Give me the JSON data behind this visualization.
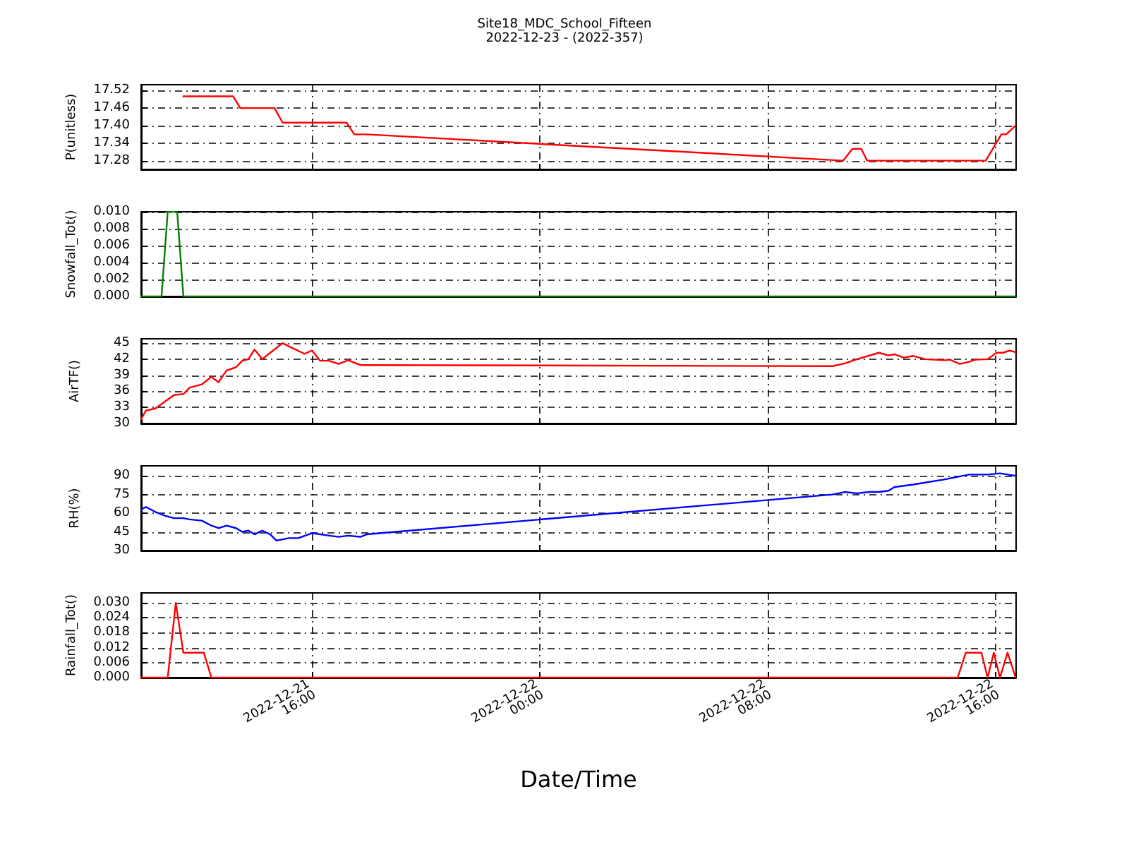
{
  "chart_data": [
    {
      "type": "line",
      "title": "Site18_MDC_School_Fifteen",
      "subtitle": "2022-12-23 - (2022-357)",
      "ylabel": "P(unitless)",
      "xlim": [
        "2022-12-21T10:00",
        "2022-12-22T16:43"
      ],
      "xticks": [
        {
          "value": "2022-12-21T16:00",
          "label": null
        },
        {
          "value": "2022-12-22T00:00",
          "label": null
        },
        {
          "value": "2022-12-22T08:00",
          "label": null
        },
        {
          "value": "2022-12-22T16:00",
          "label": null
        }
      ],
      "ylim": [
        17.25,
        17.54
      ],
      "yticks": [
        {
          "value": 17.28,
          "label": "17.28"
        },
        {
          "value": 17.34,
          "label": "17.34"
        },
        {
          "value": 17.4,
          "label": "17.40"
        },
        {
          "value": 17.46,
          "label": "17.46"
        },
        {
          "value": 17.52,
          "label": "17.52"
        }
      ],
      "grid": true,
      "tick_labels": "y",
      "marker": "none",
      "line_style": "solid",
      "series": [
        {
          "color": "#ff0000",
          "x": [
            "2022-12-21T11:29",
            "2022-12-21T13:14",
            "2022-12-21T13:29",
            "2022-12-21T14:41",
            "2022-12-21T14:58",
            "2022-12-21T17:13",
            "2022-12-21T17:29",
            "2022-12-21T17:55",
            "2022-12-22T10:39",
            "2022-12-22T10:58",
            "2022-12-22T11:17",
            "2022-12-22T11:29",
            "2022-12-22T15:39",
            "2022-12-22T16:12",
            "2022-12-22T16:22",
            "2022-12-22T16:42"
          ],
          "values": [
            17.5,
            17.5,
            17.46,
            17.46,
            17.41,
            17.41,
            17.37,
            17.37,
            17.28,
            17.32,
            17.32,
            17.28,
            17.28,
            17.37,
            17.37,
            17.4
          ]
        }
      ]
    },
    {
      "type": "line",
      "ylabel": "Snowfall_Tot()",
      "xlim": [
        "2022-12-21T10:00",
        "2022-12-22T16:43"
      ],
      "xticks": [
        {
          "value": "2022-12-21T16:00",
          "label": null
        },
        {
          "value": "2022-12-22T00:00",
          "label": null
        },
        {
          "value": "2022-12-22T08:00",
          "label": null
        },
        {
          "value": "2022-12-22T16:00",
          "label": null
        }
      ],
      "ylim": [
        0,
        0.01
      ],
      "yticks": [
        {
          "value": 0,
          "label": "0.000"
        },
        {
          "value": 0.002,
          "label": "0.002"
        },
        {
          "value": 0.004,
          "label": "0.004"
        },
        {
          "value": 0.006,
          "label": "0.006"
        },
        {
          "value": 0.008,
          "label": "0.008"
        },
        {
          "value": 0.01,
          "label": "0.010"
        }
      ],
      "grid": true,
      "tick_labels": "y",
      "marker": "none",
      "line_style": "solid",
      "series": [
        {
          "color": "#008000",
          "x": [
            "2022-12-21T10:00",
            "2022-12-21T10:43",
            "2022-12-21T10:56",
            "2022-12-21T11:16",
            "2022-12-21T11:29",
            "2022-12-22T16:42"
          ],
          "values": [
            0,
            0,
            0.01,
            0.01,
            0,
            0
          ]
        }
      ]
    },
    {
      "type": "line",
      "ylabel": "AirTF()",
      "xlim": [
        "2022-12-21T10:00",
        "2022-12-22T16:43"
      ],
      "xticks": [
        {
          "value": "2022-12-21T16:00",
          "label": null
        },
        {
          "value": "2022-12-22T00:00",
          "label": null
        },
        {
          "value": "2022-12-22T08:00",
          "label": null
        },
        {
          "value": "2022-12-22T16:00",
          "label": null
        }
      ],
      "ylim": [
        30,
        45.8
      ],
      "yticks": [
        30,
        33,
        36,
        39,
        42,
        45
      ],
      "grid": true,
      "tick_labels": "y",
      "marker": "none",
      "line_style": "solid",
      "series": [
        {
          "color": "#ff0000",
          "x": [
            "2022-12-21T10:00",
            "2022-12-21T10:10",
            "2022-12-21T10:30",
            "2022-12-21T11:09",
            "2022-12-21T11:29",
            "2022-12-21T11:42",
            "2022-12-21T12:08",
            "2022-12-21T12:28",
            "2022-12-21T12:43",
            "2022-12-21T13:00",
            "2022-12-21T13:20",
            "2022-12-21T13:33",
            "2022-12-21T13:46",
            "2022-12-21T13:59",
            "2022-12-21T14:15",
            "2022-12-21T14:32",
            "2022-12-21T14:58",
            "2022-12-21T15:11",
            "2022-12-21T15:44",
            "2022-12-21T16:00",
            "2022-12-21T16:17",
            "2022-12-21T16:36",
            "2022-12-21T16:56",
            "2022-12-21T17:16",
            "2022-12-21T17:42",
            "2022-12-21T17:55",
            "2022-12-22T10:16",
            "2022-12-22T10:42",
            "2022-12-22T11:08",
            "2022-12-22T11:54",
            "2022-12-22T12:14",
            "2022-12-22T12:27",
            "2022-12-22T12:46",
            "2022-12-22T13:06",
            "2022-12-22T13:32",
            "2022-12-22T14:11",
            "2022-12-22T14:24",
            "2022-12-22T14:44",
            "2022-12-22T15:04",
            "2022-12-22T15:17",
            "2022-12-22T15:43",
            "2022-12-22T16:02",
            "2022-12-22T16:16",
            "2022-12-22T16:29",
            "2022-12-22T16:42"
          ],
          "values": [
            30.8,
            32.4,
            32.8,
            35.3,
            35.5,
            36.7,
            37.3,
            38.7,
            37.7,
            39.9,
            40.5,
            41.7,
            42.0,
            43.8,
            42.0,
            43.2,
            45.0,
            44.4,
            43.0,
            43.6,
            41.7,
            41.7,
            41.1,
            41.8,
            40.9,
            40.9,
            40.7,
            41.2,
            42.0,
            43.2,
            42.7,
            42.9,
            42.3,
            42.6,
            42.0,
            41.8,
            41.9,
            41.1,
            41.5,
            41.9,
            42.0,
            43.2,
            43.2,
            43.6,
            43.3
          ]
        }
      ]
    },
    {
      "type": "line",
      "ylabel": "RH(%)",
      "xlim": [
        "2022-12-21T10:00",
        "2022-12-22T16:43"
      ],
      "xticks": [
        {
          "value": "2022-12-21T16:00",
          "label": null
        },
        {
          "value": "2022-12-22T00:00",
          "label": null
        },
        {
          "value": "2022-12-22T08:00",
          "label": null
        },
        {
          "value": "2022-12-22T16:00",
          "label": null
        }
      ],
      "ylim": [
        30,
        98
      ],
      "yticks": [
        30,
        45,
        60,
        75,
        90
      ],
      "grid": true,
      "tick_labels": "y",
      "marker": "none",
      "line_style": "solid",
      "series": [
        {
          "color": "#0000ff",
          "x": [
            "2022-12-21T10:00",
            "2022-12-21T10:10",
            "2022-12-21T10:30",
            "2022-12-21T10:50",
            "2022-12-21T11:09",
            "2022-12-21T11:29",
            "2022-12-21T11:42",
            "2022-12-21T12:08",
            "2022-12-21T12:28",
            "2022-12-21T12:43",
            "2022-12-21T13:00",
            "2022-12-21T13:20",
            "2022-12-21T13:33",
            "2022-12-21T13:46",
            "2022-12-21T13:59",
            "2022-12-21T14:15",
            "2022-12-21T14:32",
            "2022-12-21T14:45",
            "2022-12-21T15:11",
            "2022-12-21T15:31",
            "2022-12-21T16:00",
            "2022-12-21T16:36",
            "2022-12-21T16:56",
            "2022-12-21T17:16",
            "2022-12-21T17:42",
            "2022-12-21T17:55",
            "2022-12-22T10:16",
            "2022-12-22T10:42",
            "2022-12-22T11:08",
            "2022-12-22T11:34",
            "2022-12-22T11:54",
            "2022-12-22T12:14",
            "2022-12-22T12:27",
            "2022-12-22T13:06",
            "2022-12-22T14:11",
            "2022-12-22T15:04",
            "2022-12-22T15:43",
            "2022-12-22T16:09",
            "2022-12-22T16:42"
          ],
          "values": [
            63,
            65,
            61,
            58,
            56,
            56,
            55,
            54,
            50,
            48,
            50,
            48,
            45,
            46,
            43,
            46,
            43,
            38,
            40,
            40,
            44,
            42,
            41,
            42,
            41,
            43,
            75,
            77,
            76,
            77,
            77,
            78,
            81,
            83,
            87,
            91,
            91,
            92,
            90
          ]
        }
      ]
    },
    {
      "type": "line",
      "xlabel": "Date/Time",
      "ylabel": "Rainfall_Tot()",
      "xlim": [
        "2022-12-21T10:00",
        "2022-12-22T16:43"
      ],
      "xticks": [
        {
          "value": "2022-12-21T16:00",
          "label": "2022-12-21\n16:00"
        },
        {
          "value": "2022-12-22T00:00",
          "label": "2022-12-22\n00:00"
        },
        {
          "value": "2022-12-22T08:00",
          "label": "2022-12-22\n08:00"
        },
        {
          "value": "2022-12-22T16:00",
          "label": "2022-12-22\n16:00"
        }
      ],
      "ylim": [
        0,
        0.034
      ],
      "yticks": [
        {
          "value": 0,
          "label": "0.000"
        },
        {
          "value": 0.006,
          "label": "0.006"
        },
        {
          "value": 0.012,
          "label": "0.012"
        },
        {
          "value": 0.018,
          "label": "0.018"
        },
        {
          "value": 0.024,
          "label": "0.024"
        },
        {
          "value": 0.03,
          "label": "0.030"
        }
      ],
      "grid": true,
      "marker": "none",
      "line_style": "solid",
      "series": [
        {
          "color": "#ff0000",
          "x": [
            "2022-12-21T10:00",
            "2022-12-21T10:56",
            "2022-12-21T11:13",
            "2022-12-21T11:29",
            "2022-12-21T12:12",
            "2022-12-21T12:28",
            "2022-12-22T14:40",
            "2022-12-22T14:57",
            "2022-12-22T15:30",
            "2022-12-22T15:43",
            "2022-12-22T15:56",
            "2022-12-22T16:09",
            "2022-12-22T16:25",
            "2022-12-22T16:42"
          ],
          "values": [
            0,
            0,
            0.03,
            0.01,
            0.01,
            0,
            0,
            0.01,
            0.01,
            0,
            0.01,
            0,
            0.01,
            0
          ]
        }
      ]
    }
  ]
}
